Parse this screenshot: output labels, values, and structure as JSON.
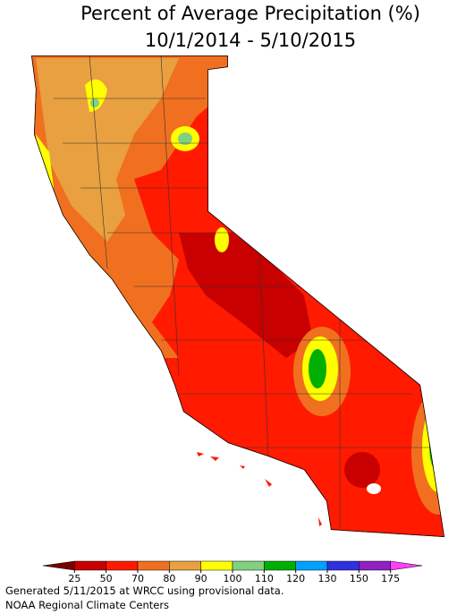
{
  "title": [
    "Percent of Average Precipitation (%)",
    "10/1/2014 - 5/10/2015"
  ],
  "legend": {
    "ticks": [
      25,
      50,
      70,
      80,
      90,
      100,
      110,
      120,
      130,
      150,
      175
    ],
    "colors": [
      "#7a0000",
      "#c80000",
      "#ff1a00",
      "#f07020",
      "#e8a040",
      "#ffff00",
      "#80d080",
      "#00b000",
      "#00a0ff",
      "#3030e0",
      "#9020c0",
      "#ff40ff"
    ]
  },
  "footer": [
    "Generated 5/11/2015 at WRCC using provisional data.",
    "NOAA Regional Climate Centers"
  ]
}
